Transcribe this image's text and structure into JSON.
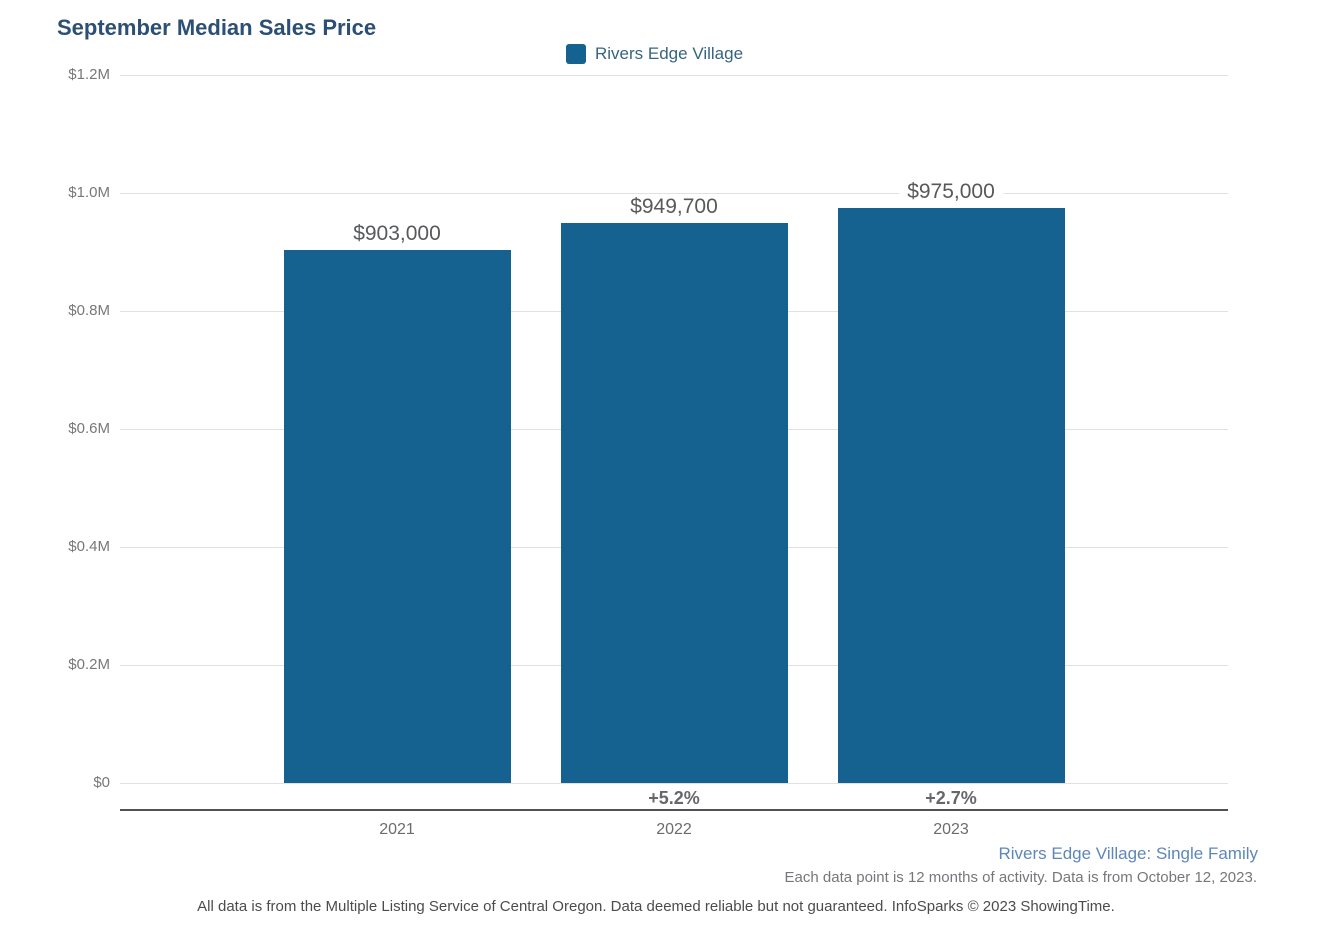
{
  "page_title": "September Median Sales Price",
  "legend": {
    "label": "Rivers Edge Village",
    "swatch_color": "#15618F"
  },
  "chart_data": {
    "type": "bar",
    "title": "September Median Sales Price",
    "categories": [
      "2021",
      "2022",
      "2023"
    ],
    "series": [
      {
        "name": "Rivers Edge Village",
        "values": [
          903000,
          949700,
          975000
        ]
      }
    ],
    "value_labels": [
      "$903,000",
      "$949,700",
      "$975,000"
    ],
    "pct_change_labels": [
      null,
      "+5.2%",
      "+2.7%"
    ],
    "xlabel": "",
    "ylabel": "",
    "ylim": [
      0,
      1200000
    ],
    "ytick_values": [
      0,
      200000,
      400000,
      600000,
      800000,
      1000000,
      1200000
    ],
    "ytick_labels": [
      "$0",
      "$0.2M",
      "$0.4M",
      "$0.6M",
      "$0.8M",
      "$1.0M",
      "$1.2M"
    ],
    "grid": true,
    "legend_position": "top-center",
    "bar_color": "#15618F"
  },
  "footer": {
    "series_note": "Rivers Edge Village: Single Family",
    "data_note": "Each data point is 12 months of activity. Data is from October 12, 2023.",
    "disclaimer": "All data is from the Multiple Listing Service of Central Oregon. Data deemed reliable but not guaranteed. InfoSparks © 2023 ShowingTime."
  },
  "colors": {
    "bar": "#15618F",
    "title": "#2C4F75",
    "legend_text": "#38647F",
    "gridline": "#E1E1E3",
    "axis_line": "#505155",
    "footer_link": "#5E87B9"
  }
}
